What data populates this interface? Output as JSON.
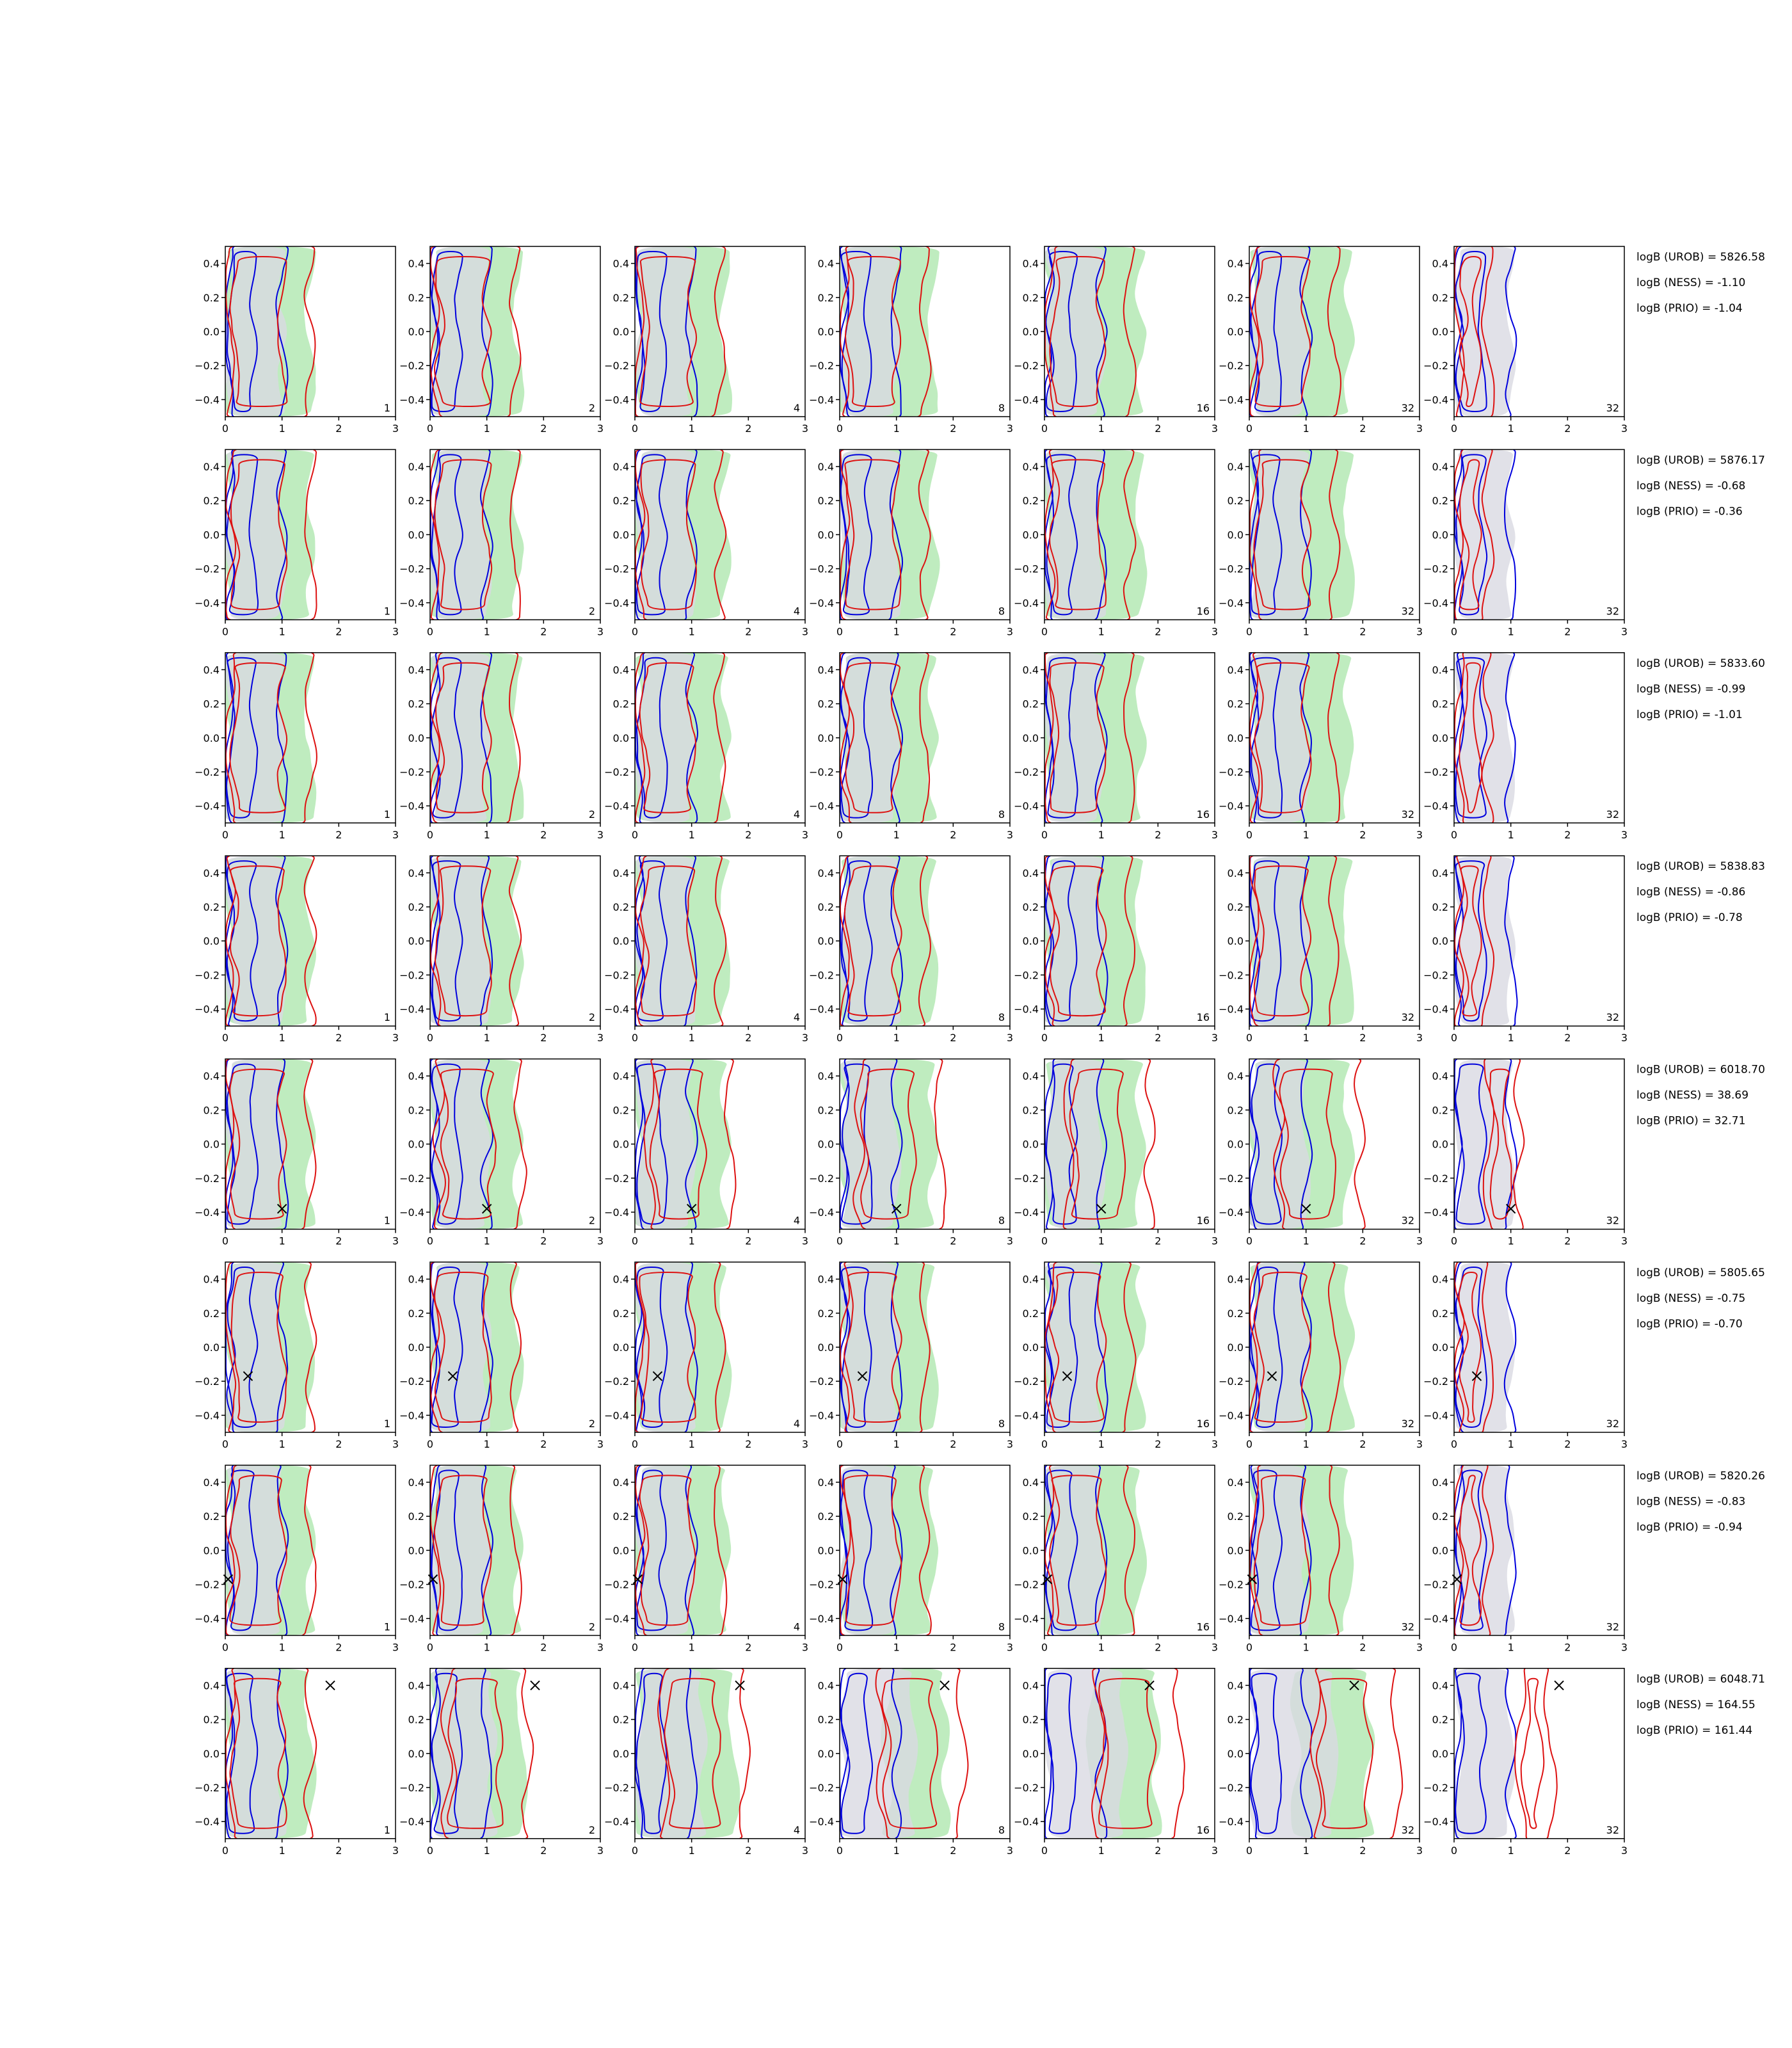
{
  "chart_data": {
    "type": "contour",
    "grid": {
      "rows": 8,
      "cols": 7
    },
    "x_axis": {
      "range": [
        0,
        3
      ],
      "ticks": [
        "0",
        "1",
        "2",
        "3"
      ]
    },
    "y_axis": {
      "range": [
        -0.5,
        0.5
      ],
      "ticks": [
        "0.4",
        "0.2",
        "0.0",
        "−0.2",
        "−0.4"
      ]
    },
    "panel_labels": [
      "1",
      "2",
      "4",
      "8",
      "16",
      "32",
      "32"
    ],
    "colors": {
      "green_fill": "#a9e6a9",
      "gray_fill": "#d9d9e2",
      "blue_line": "#0000dd",
      "red_line": "#dd1111"
    },
    "rows": [
      {
        "truth": null,
        "logB": [
          "logB (UROB) = 5826.58",
          "logB (NESS) = -1.10",
          "logB (PRIO) = -1.04"
        ]
      },
      {
        "truth": null,
        "logB": [
          "logB (UROB) = 5876.17",
          "logB (NESS) = -0.68",
          "logB (PRIO) = -0.36"
        ]
      },
      {
        "truth": null,
        "logB": [
          "logB (UROB) = 5833.60",
          "logB (NESS) = -0.99",
          "logB (PRIO) = -1.01"
        ]
      },
      {
        "truth": null,
        "logB": [
          "logB (UROB) = 5838.83",
          "logB (NESS) = -0.86",
          "logB (PRIO) = -0.78"
        ]
      },
      {
        "truth": [
          1.0,
          -0.38
        ],
        "logB": [
          "logB (UROB) = 6018.70",
          "logB (NESS) = 38.69",
          "logB (PRIO) = 32.71"
        ]
      },
      {
        "truth": [
          0.4,
          -0.17
        ],
        "logB": [
          "logB (UROB) = 5805.65",
          "logB (NESS) = -0.75",
          "logB (PRIO) = -0.70"
        ]
      },
      {
        "truth": [
          0.05,
          -0.17
        ],
        "logB": [
          "logB (UROB) = 5820.26",
          "logB (NESS) = -0.83",
          "logB (PRIO) = -0.94"
        ]
      },
      {
        "truth": [
          1.85,
          0.4
        ],
        "logB": [
          "logB (UROB) = 6048.71",
          "logB (NESS) = 164.55",
          "logB (PRIO) = 161.44"
        ]
      }
    ]
  }
}
